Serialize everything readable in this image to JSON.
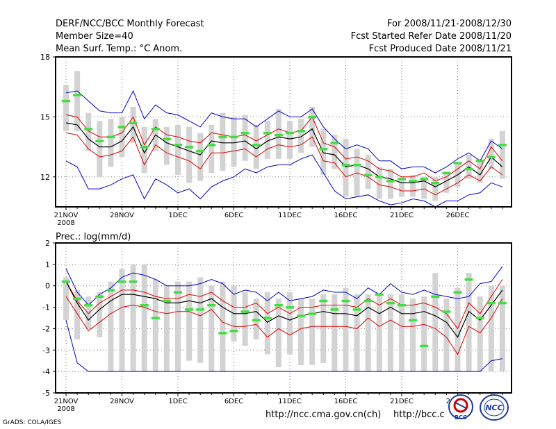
{
  "header": {
    "title": "DERF/NCC/BCC Monthly Forecast",
    "member_size": "Member Size=40",
    "variable": "Mean Surf. Temp.: °C Anom.",
    "period": "For 2008/11/21-2008/12/30",
    "start_ref": "Fcst Started Refer Date 2008/11/20",
    "produced": "Fcst Produced Date 2008/11/21"
  },
  "footer": {
    "url1": "http://ncc.cma.gov.cn(ch)",
    "url2": "http://bcc.c",
    "grads": "GrADS: COLA/IGES",
    "logo_bcc": "BCC",
    "logo_ncc": "NCC"
  },
  "colors": {
    "upper": "#0000cc",
    "lower_red": "#dd0000",
    "mean": "#000000",
    "green": "#44dd44",
    "box": "#d3d3d3"
  },
  "chart_data": [
    {
      "type": "line",
      "title": "Mean Surf. Temp.: °C Anom.",
      "ylim": [
        10.5,
        18
      ],
      "yticks": [
        12,
        15,
        18
      ],
      "x_tick_labels": [
        "21NOV",
        "28NOV",
        "1DEC",
        "6DEC",
        "11DEC",
        "16DEC",
        "21DEC",
        "26DEC"
      ],
      "x_tick_days": [
        0,
        5,
        10,
        15,
        20,
        25,
        30,
        35
      ],
      "x_sub_label": "2008",
      "days": 40,
      "series": [
        {
          "name": "max",
          "values": [
            16.2,
            16.3,
            15.8,
            15.3,
            15.2,
            15.2,
            16.3,
            14.9,
            15.6,
            15.2,
            15.1,
            14.8,
            14.5,
            15.2,
            15.0,
            14.9,
            14.9,
            14.5,
            14.9,
            15.3,
            15.0,
            15.0,
            15.4,
            14.5,
            13.9,
            13.4,
            13.6,
            13.4,
            12.8,
            12.8,
            12.4,
            12.5,
            12.5,
            12.2,
            12.5,
            12.9,
            13.2,
            12.8,
            13.8,
            13.4
          ]
        },
        {
          "name": "upper",
          "values": [
            15.1,
            15.0,
            14.3,
            14.0,
            14.0,
            14.2,
            15.0,
            13.6,
            14.5,
            14.1,
            14.0,
            13.8,
            13.7,
            14.2,
            14.1,
            14.0,
            14.1,
            13.8,
            14.1,
            14.4,
            14.2,
            14.3,
            15.0,
            13.7,
            13.5,
            12.9,
            13.0,
            12.8,
            12.4,
            12.3,
            12.0,
            12.0,
            12.2,
            11.8,
            12.0,
            12.4,
            12.8,
            12.4,
            13.5,
            12.8
          ]
        },
        {
          "name": "mean",
          "values": [
            14.7,
            14.6,
            13.9,
            13.5,
            13.5,
            13.8,
            14.5,
            13.2,
            14.1,
            13.7,
            13.5,
            13.3,
            13.1,
            13.8,
            13.7,
            13.7,
            13.8,
            13.4,
            13.8,
            14.0,
            13.9,
            14.0,
            14.4,
            13.2,
            13.1,
            12.5,
            12.6,
            12.4,
            12.0,
            11.9,
            11.7,
            11.7,
            11.8,
            11.5,
            11.8,
            12.1,
            12.5,
            12.1,
            13.0,
            12.5
          ]
        },
        {
          "name": "lower",
          "values": [
            14.2,
            14.1,
            13.4,
            13.0,
            13.1,
            13.3,
            14.0,
            12.6,
            13.6,
            13.2,
            13.0,
            12.8,
            12.4,
            13.2,
            13.2,
            13.3,
            13.4,
            13.0,
            13.4,
            13.6,
            13.5,
            13.6,
            14.0,
            12.8,
            12.7,
            12.0,
            12.2,
            12.0,
            11.6,
            11.5,
            11.3,
            11.3,
            11.4,
            11.1,
            11.4,
            11.7,
            12.1,
            11.8,
            12.5,
            12.1
          ]
        },
        {
          "name": "min",
          "values": [
            12.8,
            12.5,
            11.4,
            11.4,
            11.6,
            11.9,
            12.1,
            10.9,
            11.9,
            11.6,
            11.2,
            11.4,
            10.9,
            11.5,
            11.8,
            12.0,
            12.4,
            12.2,
            12.5,
            12.6,
            12.6,
            12.9,
            13.1,
            12.2,
            11.3,
            10.9,
            11.0,
            11.1,
            10.8,
            10.6,
            10.7,
            10.9,
            10.8,
            10.5,
            10.8,
            10.8,
            11.1,
            11.2,
            11.7,
            11.5
          ]
        },
        {
          "name": "ensemble_median",
          "values": [
            15.8,
            16.1,
            14.4,
            13.8,
            14.0,
            14.5,
            14.7,
            13.5,
            14.4,
            13.9,
            13.6,
            13.5,
            13.3,
            13.6,
            14.0,
            14.0,
            14.2,
            13.6,
            14.2,
            14.1,
            14.2,
            14.3,
            15.0,
            13.4,
            13.7,
            12.6,
            12.6,
            12.1,
            12.0,
            11.8,
            11.9,
            11.8,
            11.9,
            11.7,
            12.2,
            12.7,
            12.4,
            12.8,
            13.0,
            13.6
          ]
        }
      ],
      "box_ranges": [
        [
          14.3,
          16.6
        ],
        [
          14.3,
          17.3
        ],
        [
          13.3,
          15.2
        ],
        [
          12.0,
          14.8
        ],
        [
          12.5,
          14.9
        ],
        [
          13.0,
          15.0
        ],
        [
          13.7,
          15.5
        ],
        [
          12.2,
          14.5
        ],
        [
          13.3,
          14.9
        ],
        [
          12.6,
          14.5
        ],
        [
          12.1,
          14.6
        ],
        [
          11.7,
          14.5
        ],
        [
          11.8,
          14.2
        ],
        [
          12.2,
          14.6
        ],
        [
          12.3,
          15.2
        ],
        [
          12.5,
          15.0
        ],
        [
          12.8,
          15.1
        ],
        [
          12.4,
          14.6
        ],
        [
          12.9,
          14.8
        ],
        [
          12.9,
          15.4
        ],
        [
          12.9,
          14.8
        ],
        [
          13.2,
          14.9
        ],
        [
          13.5,
          15.5
        ],
        [
          12.1,
          14.4
        ],
        [
          12.4,
          14.1
        ],
        [
          11.0,
          13.9
        ],
        [
          11.0,
          13.4
        ],
        [
          11.4,
          13.1
        ],
        [
          10.9,
          12.5
        ],
        [
          10.9,
          12.4
        ],
        [
          11.0,
          12.0
        ],
        [
          11.0,
          12.1
        ],
        [
          10.9,
          12.0
        ],
        [
          10.8,
          12.0
        ],
        [
          11.2,
          12.2
        ],
        [
          11.5,
          12.7
        ],
        [
          11.9,
          13.1
        ],
        [
          11.7,
          12.9
        ],
        [
          12.4,
          13.9
        ],
        [
          11.9,
          14.3
        ]
      ]
    },
    {
      "type": "line",
      "title": "Prec.: log(mm/d)",
      "ylim": [
        -5,
        2
      ],
      "yticks": [
        -5,
        -4,
        -3,
        -2,
        -1,
        0,
        1,
        2
      ],
      "x_tick_labels": [
        "21NOV",
        "28NOV",
        "1DEC",
        "6DEC",
        "11DEC",
        "16DEC",
        "21DEC",
        "26DEC"
      ],
      "x_tick_days": [
        0,
        5,
        10,
        15,
        20,
        25,
        30,
        35
      ],
      "x_sub_label": "2008",
      "days": 40,
      "series": [
        {
          "name": "max",
          "values": [
            0.8,
            -0.3,
            -0.9,
            -0.4,
            -0.1,
            0.4,
            0.6,
            0.5,
            0.3,
            0.0,
            0.0,
            0.0,
            0.1,
            0.3,
            0.1,
            -0.4,
            -0.2,
            -0.3,
            -0.7,
            -0.3,
            -0.7,
            -0.6,
            -0.5,
            -0.2,
            -0.3,
            -0.3,
            -0.6,
            -0.1,
            -0.4,
            0.1,
            -0.3,
            -0.4,
            -0.2,
            -0.4,
            -0.5,
            -0.6,
            -0.5,
            0.1,
            0.2,
            0.9
          ]
        },
        {
          "name": "upper",
          "values": [
            0.2,
            -0.7,
            -1.3,
            -0.8,
            -0.5,
            -0.2,
            -0.2,
            -0.3,
            -0.5,
            -0.6,
            -0.6,
            -0.4,
            -0.5,
            -0.3,
            -0.7,
            -1.0,
            -1.0,
            -0.8,
            -1.3,
            -1.0,
            -1.3,
            -1.0,
            -1.0,
            -0.9,
            -0.9,
            -0.9,
            -1.0,
            -0.6,
            -0.9,
            -0.6,
            -0.9,
            -0.9,
            -0.8,
            -1.0,
            -1.3,
            -2.0,
            -0.8,
            -1.3,
            -0.5,
            0.3
          ]
        },
        {
          "name": "mean",
          "values": [
            0.2,
            -0.8,
            -1.6,
            -1.1,
            -0.7,
            -0.4,
            -0.4,
            -0.5,
            -0.6,
            -0.8,
            -0.8,
            -0.7,
            -0.8,
            -0.6,
            -1.0,
            -1.3,
            -1.3,
            -1.2,
            -1.7,
            -1.4,
            -1.6,
            -1.4,
            -1.3,
            -1.2,
            -1.3,
            -1.3,
            -1.4,
            -1.0,
            -1.3,
            -1.0,
            -1.3,
            -1.3,
            -1.2,
            -1.4,
            -1.7,
            -2.4,
            -1.2,
            -1.6,
            -0.9,
            -0.2
          ]
        },
        {
          "name": "lower",
          "values": [
            -0.5,
            -1.3,
            -2.1,
            -1.7,
            -1.3,
            -1.0,
            -0.9,
            -1.0,
            -1.2,
            -1.3,
            -1.2,
            -1.2,
            -1.4,
            -1.1,
            -1.7,
            -1.9,
            -1.9,
            -1.8,
            -2.4,
            -2.0,
            -2.3,
            -2.0,
            -1.9,
            -1.9,
            -1.9,
            -1.9,
            -2.0,
            -1.5,
            -1.9,
            -1.6,
            -1.9,
            -1.9,
            -1.8,
            -2.0,
            -2.4,
            -3.2,
            -1.9,
            -2.2,
            -1.5,
            -0.6
          ]
        },
        {
          "name": "min",
          "values": [
            -1.6,
            -3.6,
            -4.0,
            -4.0,
            -4.0,
            -4.0,
            -4.0,
            -4.0,
            -4.0,
            -4.0,
            -4.0,
            -4.0,
            -4.0,
            -4.0,
            -4.0,
            -4.0,
            -4.0,
            -4.0,
            -4.0,
            -4.0,
            -4.0,
            -4.0,
            -4.0,
            -4.0,
            -4.0,
            -4.0,
            -4.0,
            -4.0,
            -4.0,
            -4.0,
            -4.0,
            -4.0,
            -4.0,
            -4.0,
            -4.0,
            -4.0,
            -4.0,
            -4.0,
            -3.5,
            -3.4
          ]
        },
        {
          "name": "ensemble_median",
          "values": [
            0.2,
            -0.6,
            -0.9,
            -0.5,
            -0.2,
            0.2,
            0.2,
            -0.9,
            -1.5,
            -0.7,
            -0.3,
            -1.1,
            -1.1,
            -0.9,
            -2.2,
            -2.1,
            -1.2,
            -1.6,
            -1.5,
            -0.9,
            -1.0,
            -1.4,
            -1.3,
            -0.7,
            -1.1,
            -0.7,
            -1.1,
            -0.7,
            -0.4,
            -0.8,
            -0.9,
            -1.6,
            -2.8,
            -0.5,
            -1.2,
            -0.3,
            0.3,
            -1.5,
            -0.8,
            -0.8
          ]
        }
      ],
      "box_ranges": [
        [
          -1.6,
          0.4
        ],
        [
          -2.5,
          -0.2
        ],
        [
          -2.0,
          -0.5
        ],
        [
          -2.4,
          -0.3
        ],
        [
          -4.0,
          0.2
        ],
        [
          -4.0,
          0.8
        ],
        [
          -4.0,
          1.0
        ],
        [
          -4.0,
          1.0
        ],
        [
          -4.0,
          0.3
        ],
        [
          -4.0,
          0.0
        ],
        [
          -4.0,
          0.2
        ],
        [
          -3.5,
          0.2
        ],
        [
          -3.6,
          0.4
        ],
        [
          -4.0,
          0.0
        ],
        [
          -4.0,
          0.2
        ],
        [
          -2.6,
          0.0
        ],
        [
          -2.8,
          -0.3
        ],
        [
          -2.5,
          -0.6
        ],
        [
          -3.2,
          -0.3
        ],
        [
          -3.8,
          -0.6
        ],
        [
          -3.2,
          -0.3
        ],
        [
          -3.7,
          -0.6
        ],
        [
          -3.7,
          -0.6
        ],
        [
          -3.6,
          -0.4
        ],
        [
          -4.0,
          -0.4
        ],
        [
          -4.0,
          -0.1
        ],
        [
          -4.0,
          -0.4
        ],
        [
          -4.0,
          -0.4
        ],
        [
          -4.0,
          -0.4
        ],
        [
          -4.0,
          -0.4
        ],
        [
          -4.0,
          -0.4
        ],
        [
          -4.0,
          -0.6
        ],
        [
          -4.0,
          -0.5
        ],
        [
          -4.0,
          0.6
        ],
        [
          -4.0,
          -0.6
        ],
        [
          -4.0,
          -0.1
        ],
        [
          -4.0,
          0.6
        ],
        [
          -4.0,
          -0.5
        ],
        [
          -4.0,
          0.0
        ],
        [
          -4.0,
          0.0
        ]
      ]
    }
  ]
}
